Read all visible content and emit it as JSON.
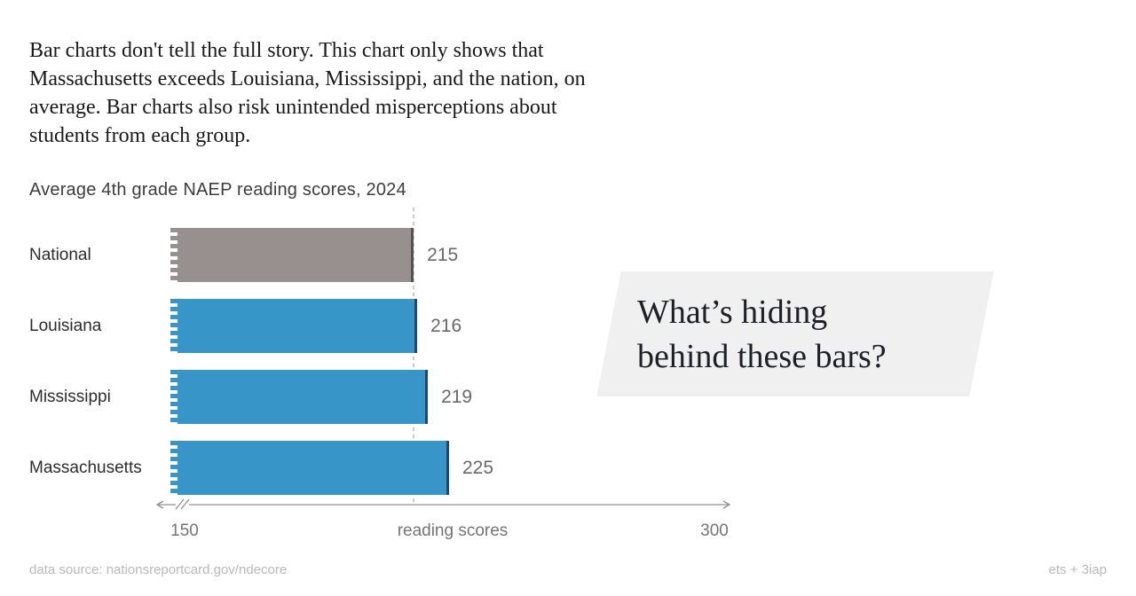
{
  "intro": {
    "lines": [
      "Bar charts don't tell the full story. This chart only shows that",
      "Massachusetts exceeds Louisiana, Mississippi, and the nation, on",
      "average. Bar charts also risk unintended misperceptions about",
      "students from each group."
    ]
  },
  "chart_data": {
    "type": "bar",
    "orientation": "horizontal",
    "title": "Average 4th grade NAEP reading scores, 2024",
    "categories": [
      "National",
      "Louisiana",
      "Mississippi",
      "Massachusetts"
    ],
    "values": [
      215,
      216,
      219,
      225
    ],
    "bar_colors": [
      "#98908f",
      "#3795c8",
      "#3795c8",
      "#3795c8"
    ],
    "bar_edge_colors": [
      "#565050",
      "#1b4b70",
      "#1b4b70",
      "#1b4b70"
    ],
    "xlabel": "reading scores",
    "x_ticks": [
      150,
      300
    ],
    "xlim": [
      150,
      300
    ],
    "axis_break": true,
    "grid": false,
    "legend": false,
    "reference_line": {
      "value": 215,
      "style": "dashed",
      "meaning": "national average"
    }
  },
  "annotation": {
    "line1": "What’s hiding",
    "line2": "behind these bars?"
  },
  "footer": {
    "source": "data source: nationsreportcard.gov/ndecore",
    "credit": "ets + 3iap"
  },
  "colors": {
    "bar_blue": "#3795c8",
    "bar_gray": "#98908f",
    "edge_blue": "#1b4b70",
    "edge_gray": "#565050",
    "reference_dash": "#cbcbcb",
    "callout_bg": "#f0f0f1",
    "axis": "#8f8f8f"
  }
}
